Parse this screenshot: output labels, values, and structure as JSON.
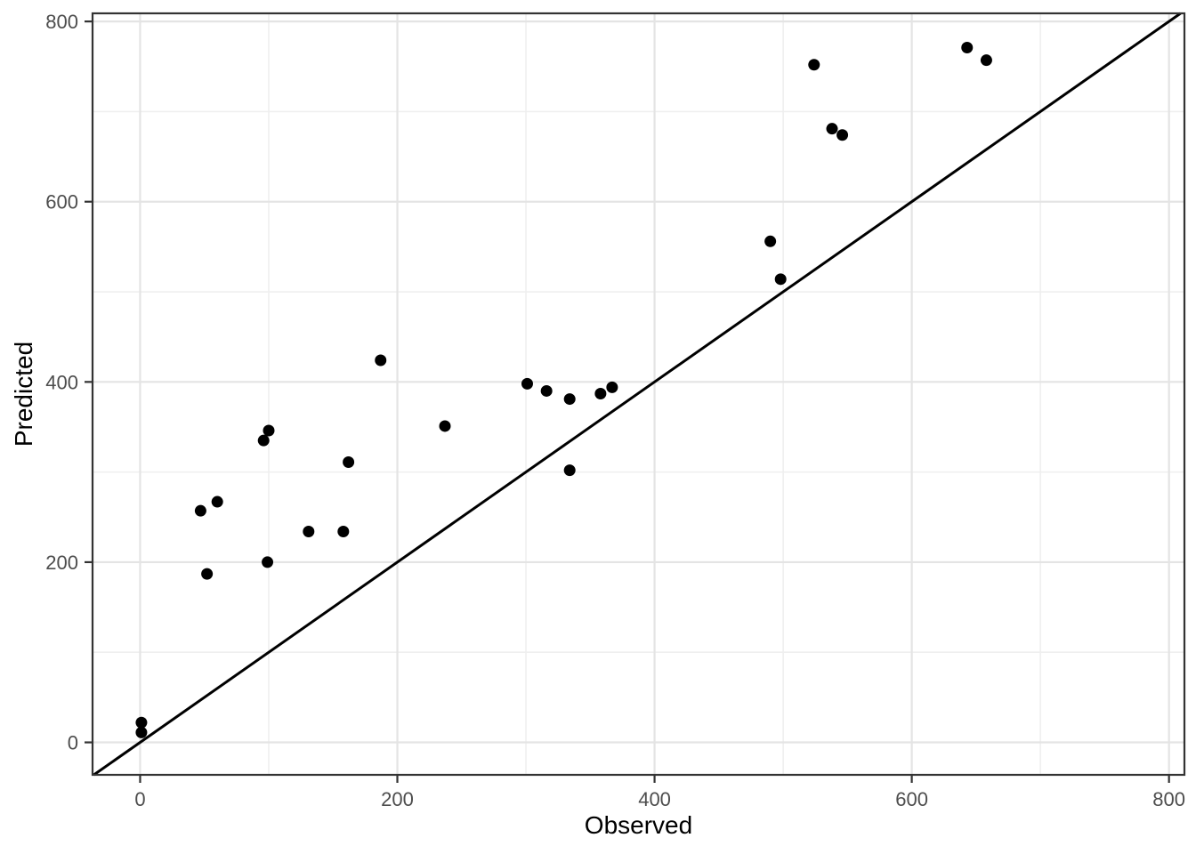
{
  "chart_data": {
    "type": "scatter",
    "title": "",
    "xlabel": "Observed",
    "ylabel": "Predicted",
    "xlim": [
      -37,
      812
    ],
    "ylim": [
      -36,
      809
    ],
    "x_ticks": [
      0,
      200,
      400,
      600,
      800
    ],
    "x_tick_labels": [
      "0",
      "200",
      "400",
      "600",
      "800"
    ],
    "y_ticks": [
      0,
      200,
      400,
      600,
      800
    ],
    "y_tick_labels": [
      "0",
      "200",
      "400",
      "600",
      "800"
    ],
    "x_minor_ticks": [
      100,
      300,
      500,
      700
    ],
    "y_minor_ticks": [
      100,
      300,
      500,
      700
    ],
    "grid": true,
    "legend": "none",
    "identity_line": {
      "slope": 1,
      "intercept": 0
    },
    "points": [
      [
        1,
        11
      ],
      [
        1,
        22
      ],
      [
        47,
        257
      ],
      [
        52,
        187
      ],
      [
        60,
        267
      ],
      [
        96,
        335
      ],
      [
        99,
        200
      ],
      [
        100,
        346
      ],
      [
        131,
        234
      ],
      [
        158,
        234
      ],
      [
        162,
        311
      ],
      [
        187,
        424
      ],
      [
        237,
        351
      ],
      [
        301,
        398
      ],
      [
        316,
        390
      ],
      [
        334,
        302
      ],
      [
        334,
        381
      ],
      [
        358,
        387
      ],
      [
        367,
        394
      ],
      [
        490,
        556
      ],
      [
        498,
        514
      ],
      [
        524,
        752
      ],
      [
        538,
        681
      ],
      [
        546,
        674
      ],
      [
        643,
        771
      ],
      [
        658,
        757
      ]
    ],
    "colors": {
      "background": "#FFFFFF",
      "point": "#000000",
      "identity_line": "#000000",
      "grid_major": "#E4E4E4",
      "grid_minor": "#EFEFEF",
      "panel_border": "#333333",
      "tick_mark": "#333333",
      "tick_label": "#4D4D4D",
      "axis_title": "#000000"
    }
  }
}
